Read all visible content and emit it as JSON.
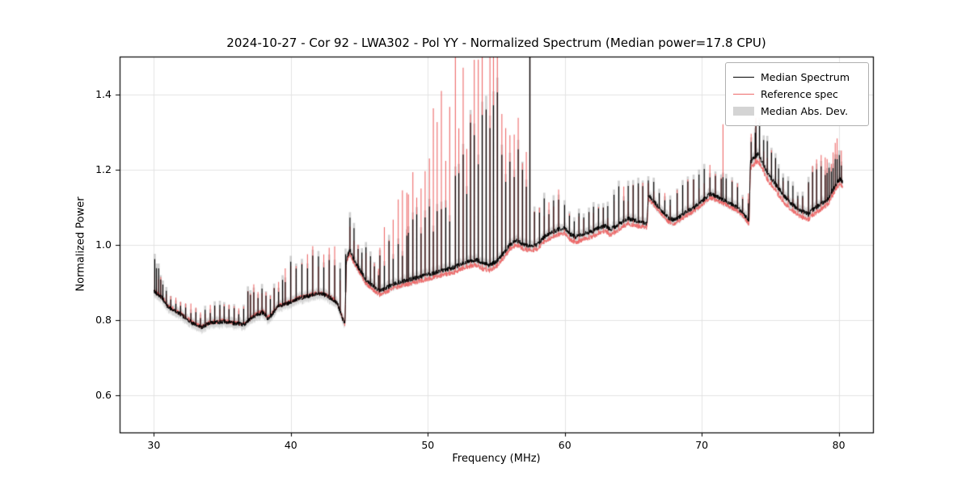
{
  "title": "2024-10-27 - Cor 92 - LWA302 - Pol YY - Normalized Spectrum (Median power=17.8 CPU)",
  "xlabel": "Frequency (MHz)",
  "ylabel": "Normalized Power",
  "legend": [
    {
      "label": "Median Spectrum",
      "color": "#000000",
      "swatch": "line"
    },
    {
      "label": "Reference spec",
      "color": "#ee6a6a",
      "swatch": "line"
    },
    {
      "label": "Median Abs. Dev.",
      "color": "#d4d4d4",
      "swatch": "band"
    }
  ],
  "colors": {
    "median": "#000000",
    "reference": "#ee6a6a",
    "mad": "#c8c8c8",
    "grid": "#e3e3e3",
    "spine": "#000000"
  },
  "chart_data": {
    "type": "line",
    "title": "2024-10-27 - Cor 92 - LWA302 - Pol YY - Normalized Spectrum (Median power=17.8 CPU)",
    "xlabel": "Frequency (MHz)",
    "ylabel": "Normalized Power",
    "xlim": [
      27.5,
      82.5
    ],
    "ylim": [
      0.5,
      1.5
    ],
    "xticks": [
      30,
      40,
      50,
      60,
      70,
      80
    ],
    "xtick_labels": [
      "30",
      "40",
      "50",
      "60",
      "70",
      "80"
    ],
    "yticks": [
      0.6,
      0.8,
      1.0,
      1.2,
      1.4
    ],
    "ytick_labels": [
      "0.6",
      "0.8",
      "1.0",
      "1.2",
      "1.4"
    ],
    "grid": true,
    "legend_position": "upper right",
    "freq_range_mhz": [
      30.0,
      80.3
    ],
    "noise_amp": 0.006,
    "mad_halfwidth": 0.014,
    "series": [
      {
        "name": "Median Spectrum",
        "baseline": [
          [
            30.0,
            0.875
          ],
          [
            30.3,
            0.868
          ],
          [
            30.6,
            0.858
          ],
          [
            31.0,
            0.835
          ],
          [
            31.5,
            0.824
          ],
          [
            32.0,
            0.813
          ],
          [
            32.5,
            0.8
          ],
          [
            33.0,
            0.786
          ],
          [
            33.5,
            0.78
          ],
          [
            34.0,
            0.79
          ],
          [
            34.5,
            0.793
          ],
          [
            35.0,
            0.795
          ],
          [
            35.5,
            0.792
          ],
          [
            36.0,
            0.79
          ],
          [
            36.5,
            0.786
          ],
          [
            37.0,
            0.8
          ],
          [
            37.5,
            0.814
          ],
          [
            38.0,
            0.82
          ],
          [
            38.3,
            0.803
          ],
          [
            38.6,
            0.812
          ],
          [
            39.0,
            0.834
          ],
          [
            39.5,
            0.84
          ],
          [
            40.0,
            0.846
          ],
          [
            40.5,
            0.855
          ],
          [
            41.0,
            0.86
          ],
          [
            41.5,
            0.865
          ],
          [
            42.0,
            0.87
          ],
          [
            42.5,
            0.866
          ],
          [
            43.0,
            0.856
          ],
          [
            43.4,
            0.842
          ],
          [
            43.8,
            0.8
          ],
          [
            43.95,
            0.79
          ],
          [
            44.05,
            0.96
          ],
          [
            44.3,
            0.985
          ],
          [
            44.6,
            0.96
          ],
          [
            45.0,
            0.935
          ],
          [
            45.5,
            0.905
          ],
          [
            46.0,
            0.89
          ],
          [
            46.5,
            0.876
          ],
          [
            47.0,
            0.885
          ],
          [
            47.5,
            0.895
          ],
          [
            48.0,
            0.9
          ],
          [
            48.5,
            0.905
          ],
          [
            49.0,
            0.91
          ],
          [
            49.5,
            0.915
          ],
          [
            50.0,
            0.92
          ],
          [
            50.5,
            0.925
          ],
          [
            51.0,
            0.93
          ],
          [
            51.5,
            0.935
          ],
          [
            52.0,
            0.94
          ],
          [
            52.5,
            0.95
          ],
          [
            53.0,
            0.955
          ],
          [
            53.5,
            0.96
          ],
          [
            54.0,
            0.95
          ],
          [
            54.5,
            0.945
          ],
          [
            55.0,
            0.955
          ],
          [
            55.5,
            0.975
          ],
          [
            56.0,
            1.0
          ],
          [
            56.5,
            1.01
          ],
          [
            57.0,
            1.0
          ],
          [
            57.5,
            0.995
          ],
          [
            58.0,
            1.0
          ],
          [
            58.5,
            1.02
          ],
          [
            59.0,
            1.03
          ],
          [
            59.5,
            1.04
          ],
          [
            60.0,
            1.045
          ],
          [
            60.3,
            1.03
          ],
          [
            60.8,
            1.02
          ],
          [
            61.5,
            1.03
          ],
          [
            62.0,
            1.035
          ],
          [
            62.5,
            1.045
          ],
          [
            63.0,
            1.05
          ],
          [
            63.3,
            1.04
          ],
          [
            63.8,
            1.05
          ],
          [
            64.2,
            1.06
          ],
          [
            64.6,
            1.07
          ],
          [
            65.0,
            1.065
          ],
          [
            65.5,
            1.06
          ],
          [
            66.0,
            1.055
          ],
          [
            66.1,
            1.13
          ],
          [
            66.4,
            1.12
          ],
          [
            66.8,
            1.1
          ],
          [
            67.2,
            1.085
          ],
          [
            67.6,
            1.07
          ],
          [
            68.0,
            1.065
          ],
          [
            68.4,
            1.075
          ],
          [
            69.0,
            1.09
          ],
          [
            69.5,
            1.1
          ],
          [
            70.0,
            1.115
          ],
          [
            70.3,
            1.125
          ],
          [
            70.6,
            1.135
          ],
          [
            70.9,
            1.13
          ],
          [
            71.2,
            1.125
          ],
          [
            71.5,
            1.12
          ],
          [
            72.0,
            1.11
          ],
          [
            72.5,
            1.1
          ],
          [
            73.0,
            1.085
          ],
          [
            73.3,
            1.07
          ],
          [
            73.45,
            1.065
          ],
          [
            73.55,
            1.22
          ],
          [
            73.8,
            1.23
          ],
          [
            74.1,
            1.24
          ],
          [
            74.4,
            1.22
          ],
          [
            74.8,
            1.19
          ],
          [
            75.2,
            1.17
          ],
          [
            75.6,
            1.15
          ],
          [
            76.0,
            1.13
          ],
          [
            76.5,
            1.11
          ],
          [
            77.0,
            1.095
          ],
          [
            77.5,
            1.085
          ],
          [
            77.8,
            1.08
          ],
          [
            78.0,
            1.09
          ],
          [
            78.4,
            1.1
          ],
          [
            78.8,
            1.11
          ],
          [
            79.2,
            1.12
          ],
          [
            79.5,
            1.14
          ],
          [
            79.8,
            1.16
          ],
          [
            80.1,
            1.175
          ],
          [
            80.3,
            1.165
          ]
        ]
      },
      {
        "name": "Reference spec",
        "offset_from_median": [
          [
            30.0,
            0.002
          ],
          [
            43.9,
            0.002
          ],
          [
            44.0,
            -0.008
          ],
          [
            46.0,
            -0.01
          ],
          [
            50.0,
            -0.012
          ],
          [
            54.0,
            -0.015
          ],
          [
            56.0,
            -0.012
          ],
          [
            58.0,
            -0.012
          ],
          [
            60.0,
            -0.015
          ],
          [
            65.0,
            -0.015
          ],
          [
            66.1,
            -0.01
          ],
          [
            70.0,
            -0.01
          ],
          [
            73.4,
            -0.008
          ],
          [
            73.6,
            -0.018
          ],
          [
            76.0,
            -0.018
          ],
          [
            78.0,
            -0.015
          ],
          [
            80.3,
            -0.012
          ]
        ]
      }
    ],
    "spike_groups_comment": "RFI comb spikes: [f_start, f_end, spacing_MHz, h_median_start, h_median_end, h_reference_start, h_reference_end] heights above baseline",
    "spike_groups": [
      [
        30.05,
        30.7,
        0.15,
        0.07,
        0.04,
        0.06,
        0.04
      ],
      [
        30.9,
        32.5,
        0.35,
        0.03,
        0.03,
        0.03,
        0.03
      ],
      [
        32.7,
        36.7,
        0.35,
        0.035,
        0.035,
        0.035,
        0.035
      ],
      [
        36.85,
        37.35,
        0.22,
        0.09,
        0.06,
        0.08,
        0.06
      ],
      [
        37.6,
        39.4,
        0.3,
        0.05,
        0.05,
        0.05,
        0.05
      ],
      [
        39.6,
        43.6,
        0.4,
        0.09,
        0.1,
        0.1,
        0.11
      ],
      [
        44.0,
        46.4,
        0.3,
        0.08,
        0.06,
        0.08,
        0.06
      ],
      [
        46.5,
        48.5,
        0.33,
        0.09,
        0.09,
        0.14,
        0.2
      ],
      [
        48.6,
        51.8,
        0.3,
        0.12,
        0.18,
        0.25,
        0.45
      ],
      [
        52.0,
        55.2,
        0.28,
        0.22,
        0.38,
        0.45,
        0.58
      ],
      [
        55.4,
        57.2,
        0.3,
        0.3,
        0.15,
        0.42,
        0.25
      ],
      [
        57.8,
        59.8,
        0.35,
        0.08,
        0.08,
        0.1,
        0.1
      ],
      [
        60.0,
        63.4,
        0.35,
        0.055,
        0.055,
        0.06,
        0.06
      ],
      [
        63.6,
        65.8,
        0.35,
        0.08,
        0.08,
        0.09,
        0.09
      ],
      [
        66.1,
        68.0,
        0.4,
        0.05,
        0.05,
        0.05,
        0.05
      ],
      [
        68.2,
        70.8,
        0.4,
        0.06,
        0.06,
        0.07,
        0.07
      ],
      [
        71.0,
        73.4,
        0.4,
        0.05,
        0.05,
        0.06,
        0.06
      ],
      [
        73.6,
        75.4,
        0.3,
        0.07,
        0.07,
        0.07,
        0.07
      ],
      [
        75.6,
        77.6,
        0.35,
        0.04,
        0.04,
        0.04,
        0.04
      ],
      [
        77.8,
        79.0,
        0.3,
        0.08,
        0.08,
        0.12,
        0.12
      ],
      [
        79.15,
        80.25,
        0.15,
        0.06,
        0.06,
        0.1,
        0.1
      ]
    ],
    "spike_singles": [
      [
        57.45,
        0.62,
        0.62
      ],
      [
        71.55,
        0.06,
        0.21
      ],
      [
        73.95,
        0.08,
        0.12
      ]
    ]
  }
}
